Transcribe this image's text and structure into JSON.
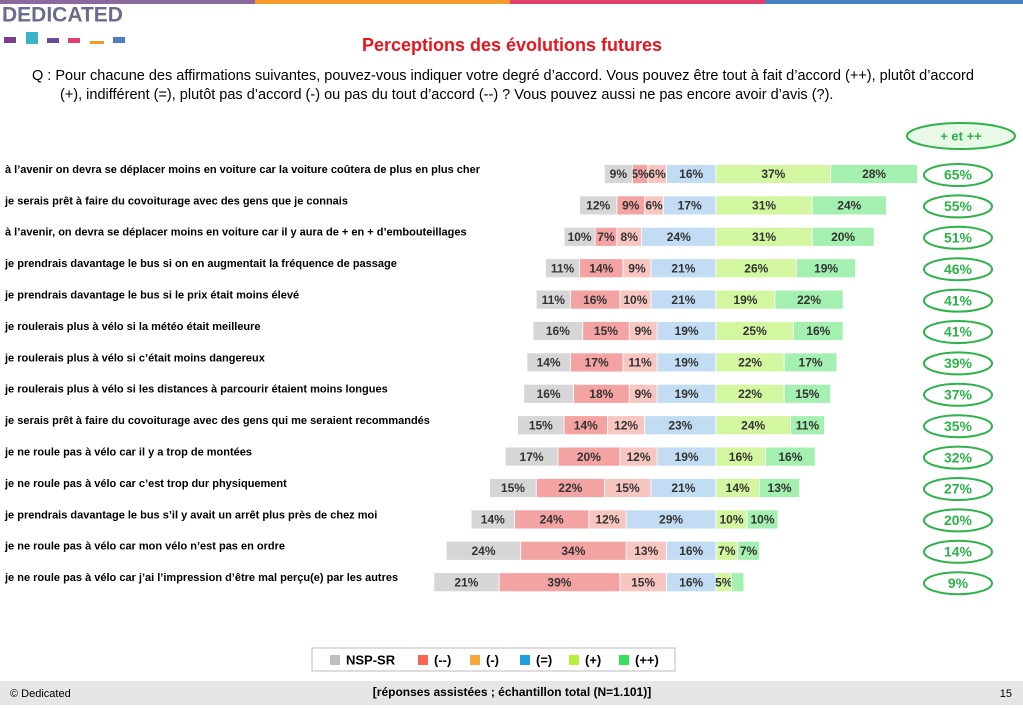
{
  "header": {
    "logo": "DEDICATED"
  },
  "footer": {
    "copyright": "© Dedicated",
    "note": "[réponses assistées ; échantillon total (N=1.101)]",
    "page": "15"
  },
  "chart_data": {
    "type": "bar",
    "title": "Perceptions des évolutions futures",
    "subtitle": "Q : Pour chacune des affirmations suivantes, pouvez-vous indiquer votre degré d’accord. Vous pouvez être tout à fait d’accord (++), plutôt d’accord (+), indifférent (=), plutôt pas d’accord (-) ou pas du tout d’accord (--) ? Vous pouvez aussi ne pas encore avoir d’avis (?).",
    "categories": [
      "à l’avenir on devra se déplacer moins en voiture car la voiture coûtera de plus en plus cher",
      "je serais prêt à faire du covoiturage avec des gens que je connais",
      "à l’avenir, on devra se déplacer moins en voiture car il y aura de + en  + d’embouteillages",
      "je prendrais davantage le bus si on en augmentait la fréquence de passage",
      "je prendrais davantage le bus si le prix était moins élevé",
      "je roulerais plus à vélo si la météo était meilleure",
      "je roulerais plus à vélo si c’était moins dangereux",
      "je roulerais plus à vélo si les distances à parcourir étaient moins longues",
      "je serais prêt à faire du covoiturage avec des gens qui me seraient recommandés",
      "je ne roule pas à vélo car il y a trop de montées",
      "je ne roule pas à vélo car c’est trop dur physiquement",
      "je prendrais davantage le bus s’il y avait un arrêt plus près de chez moi",
      "je ne roule pas à vélo car mon vélo n’est pas en ordre",
      "je ne roule pas à vélo car j’ai l’impression d’être mal perçu(e) par les autres"
    ],
    "series": [
      {
        "name": "NSP-SR",
        "color": "#d6d6d6",
        "legend_color": "#bfbfbf",
        "side": "left",
        "values": [
          9,
          12,
          10,
          11,
          11,
          16,
          14,
          16,
          15,
          17,
          15,
          14,
          24,
          21
        ],
        "value_labels": [
          "9%",
          "12%",
          "10%",
          "11%",
          "11%",
          "16%",
          "14%",
          "16%",
          "15%",
          "17%",
          "15%",
          "14%",
          "24%",
          "21%"
        ]
      },
      {
        "name": "(--)",
        "color": "#f4a3a3",
        "legend_color": "#fa6450",
        "side": "left",
        "values": [
          5,
          9,
          7,
          14,
          16,
          15,
          17,
          18,
          14,
          20,
          22,
          24,
          34,
          39
        ],
        "value_labels": [
          "5%",
          "9%",
          "7%",
          "14%",
          "16%",
          "15%",
          "17%",
          "18%",
          "14%",
          "20%",
          "22%",
          "24%",
          "34%",
          "39%"
        ]
      },
      {
        "name": "(-)",
        "color": "#f8c6c0",
        "legend_color": "#f5a73c",
        "side": "left",
        "values": [
          6,
          6,
          8,
          9,
          10,
          9,
          11,
          9,
          12,
          12,
          15,
          12,
          13,
          15
        ],
        "value_labels": [
          "6%",
          "6%",
          "8%",
          "9%",
          "10%",
          "9%",
          "11%",
          "9%",
          "12%",
          "12%",
          "15%",
          "12%",
          "13%",
          "15%"
        ]
      },
      {
        "name": "(=)",
        "color": "#c2dcf4",
        "legend_color": "#1ea0dc",
        "side": "left",
        "values": [
          16,
          17,
          24,
          21,
          21,
          19,
          19,
          19,
          23,
          19,
          21,
          29,
          16,
          16
        ],
        "value_labels": [
          "16%",
          "17%",
          "24%",
          "21%",
          "21%",
          "19%",
          "19%",
          "19%",
          "23%",
          "19%",
          "21%",
          "29%",
          "16%",
          "16%"
        ]
      },
      {
        "name": "(+)",
        "color": "#d2f7a0",
        "legend_color": "#b4f03c",
        "side": "right",
        "values": [
          37,
          31,
          31,
          26,
          19,
          25,
          22,
          22,
          24,
          16,
          14,
          10,
          7,
          5
        ],
        "value_labels": [
          "37%",
          "31%",
          "31%",
          "26%",
          "19%",
          "25%",
          "22%",
          "22%",
          "24%",
          "16%",
          "14%",
          "10%",
          "7%",
          "5%"
        ]
      },
      {
        "name": "(++)",
        "color": "#a4f0b0",
        "legend_color": "#34e05a",
        "side": "right",
        "values": [
          28,
          24,
          20,
          19,
          22,
          16,
          17,
          15,
          11,
          16,
          13,
          10,
          7,
          4
        ],
        "value_labels": [
          "28%",
          "24%",
          "20%",
          "19%",
          "22%",
          "16%",
          "17%",
          "15%",
          "11%",
          "16%",
          "13%",
          "10%",
          "7%",
          null
        ]
      }
    ],
    "totals": {
      "header": "+ et ++",
      "values": [
        65,
        55,
        51,
        46,
        41,
        41,
        39,
        37,
        35,
        32,
        27,
        20,
        14,
        9
      ],
      "value_labels": [
        "65%",
        "55%",
        "51%",
        "46%",
        "41%",
        "41%",
        "39%",
        "37%",
        "35%",
        "32%",
        "27%",
        "20%",
        "14%",
        "9%"
      ]
    }
  }
}
